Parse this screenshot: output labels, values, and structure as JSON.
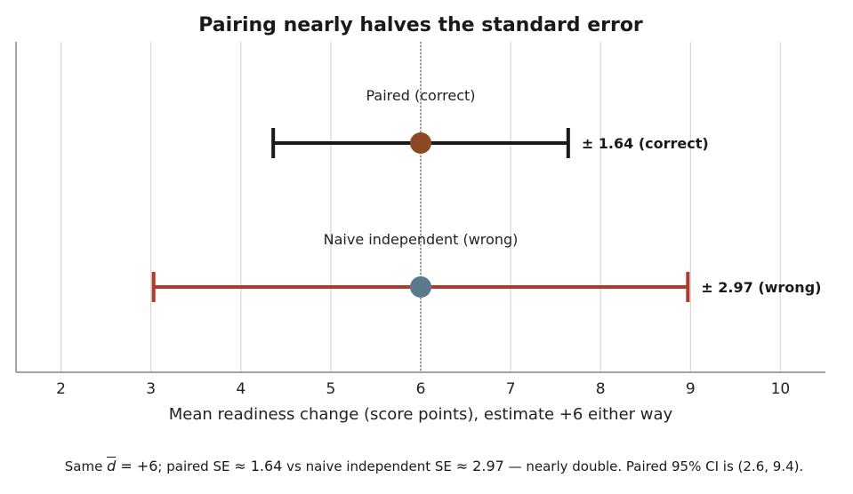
{
  "chart_data": {
    "type": "errorbar",
    "title": "Pairing nearly halves the standard error",
    "xlabel": "Mean readiness change (score points), estimate +6 either way",
    "xlim": [
      1.5,
      10.5
    ],
    "x_ticks": [
      2,
      3,
      4,
      5,
      6,
      7,
      8,
      9,
      10
    ],
    "grid": "vertical",
    "reference_line": {
      "x": 6,
      "style": "dotted"
    },
    "series": [
      {
        "name": "Paired (correct)",
        "estimate": 6,
        "low": 4.36,
        "high": 7.64,
        "annotation": "± 1.64  (correct)",
        "bar_color": "#1a1a1a",
        "point_color": "#8b4a26"
      },
      {
        "name": "Naive independent (wrong)",
        "estimate": 6,
        "low": 3.03,
        "high": 8.97,
        "annotation": "± 2.97  (wrong)",
        "bar_color": "#b03a2e",
        "point_color": "#5a7a8c"
      }
    ]
  },
  "footnote": {
    "prefix": "Same ",
    "d_symbol": "d",
    "d_value": " = +6",
    "middle1": "; paired SE ",
    "paired_se": " ≈ 1.64",
    "middle2": " vs naive independent SE ",
    "naive_se": " ≈ 2.97",
    "suffix": " — nearly double. Paired 95% CI is (2.6, 9.4)."
  },
  "colors": {
    "axis": "#8a8478",
    "grid": "#d9d9d9",
    "reference": "#7a7a6a"
  }
}
